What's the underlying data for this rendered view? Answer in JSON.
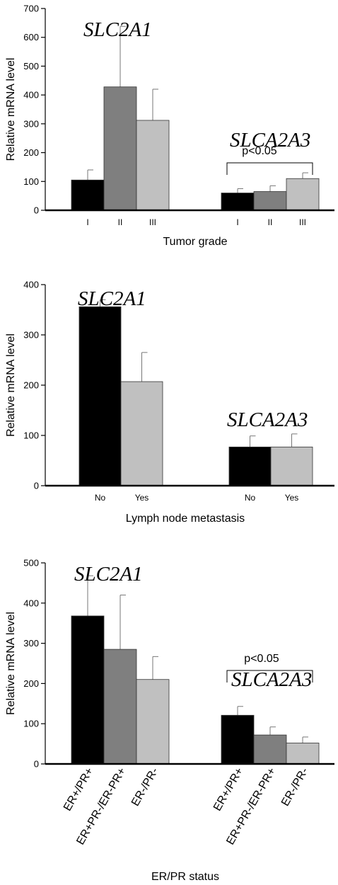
{
  "colors": {
    "bar_1": "#000000",
    "bar_2": "#7f7f7f",
    "bar_3": "#c0c0c0",
    "axis": "#000000"
  },
  "chart_data": [
    {
      "type": "bar",
      "ylabel": "Relative mRNA level",
      "xlabel": "Tumor grade",
      "ylim": [
        0,
        700
      ],
      "yticks": [
        0,
        100,
        200,
        300,
        400,
        500,
        600,
        700
      ],
      "groups": [
        {
          "gene": "SLC2A1",
          "categories": [
            "I",
            "II",
            "III"
          ],
          "values": [
            105,
            428,
            312
          ],
          "errors": [
            35,
            210,
            108
          ]
        },
        {
          "gene": "SLCA2A3",
          "categories": [
            "I",
            "II",
            "III"
          ],
          "values": [
            60,
            65,
            110
          ],
          "errors": [
            15,
            20,
            20
          ],
          "significance": "p<0.05"
        }
      ]
    },
    {
      "type": "bar",
      "ylabel": "Relative mRNA level",
      "xlabel": "Lymph node metastasis",
      "ylim": [
        0,
        400
      ],
      "yticks": [
        0,
        100,
        200,
        300,
        400
      ],
      "groups": [
        {
          "gene": "SLC2A1",
          "categories": [
            "No",
            "Yes"
          ],
          "values": [
            356,
            207
          ],
          "errors": [
            14,
            58
          ]
        },
        {
          "gene": "SLCA2A3",
          "categories": [
            "No",
            "Yes"
          ],
          "values": [
            77,
            77
          ],
          "errors": [
            22,
            26
          ]
        }
      ]
    },
    {
      "type": "bar",
      "ylabel": "Relative mRNA level",
      "xlabel": "ER/PR status",
      "ylim": [
        0,
        500
      ],
      "yticks": [
        0,
        100,
        200,
        300,
        400,
        500
      ],
      "groups": [
        {
          "gene": "SLC2A1",
          "categories": [
            "ER+/PR+",
            "ER+PR-/ER-PR+",
            "ER-/PR-"
          ],
          "values": [
            368,
            285,
            210
          ],
          "errors": [
            100,
            135,
            57
          ]
        },
        {
          "gene": "SLCA2A3",
          "categories": [
            "ER+/PR+",
            "ER+PR-/ER-PR+",
            "ER-/PR-"
          ],
          "values": [
            121,
            72,
            52
          ],
          "errors": [
            22,
            20,
            15
          ],
          "significance": "p<0.05"
        }
      ]
    }
  ]
}
